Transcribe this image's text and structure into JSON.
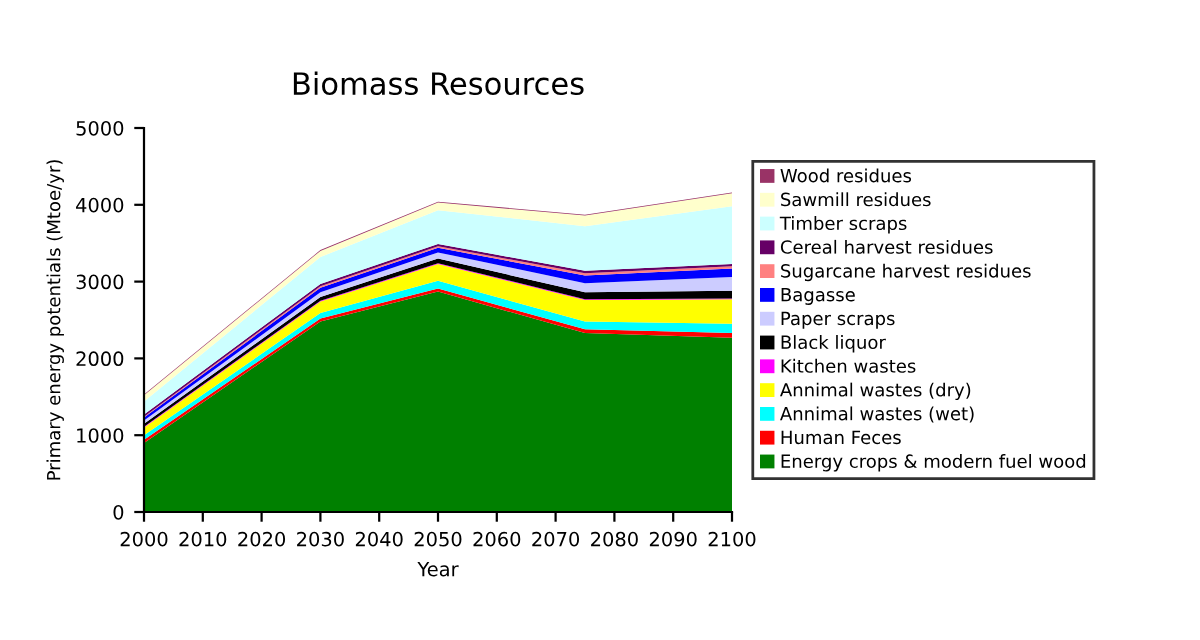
{
  "chart_data": {
    "type": "area",
    "stacked": true,
    "title": "Biomass Resources",
    "xlabel": "Year",
    "ylabel": "Primary energy potentials (Mtoe/yr)",
    "x": [
      2000,
      2030,
      2050,
      2075,
      2100
    ],
    "xlim": [
      2000,
      2100
    ],
    "xticks": [
      2000,
      2010,
      2020,
      2030,
      2040,
      2050,
      2060,
      2070,
      2080,
      2090,
      2100
    ],
    "ylim": [
      0,
      5000
    ],
    "yticks": [
      0,
      1000,
      2000,
      3000,
      4000,
      5000
    ],
    "grid": false,
    "legend": "right",
    "series": [
      {
        "name": "Energy crops & modern fuel wood",
        "color": "#008000",
        "values": [
          900,
          2480,
          2870,
          2330,
          2270
        ]
      },
      {
        "name": "Human Feces",
        "color": "#ff0000",
        "values": [
          40,
          40,
          40,
          50,
          60
        ]
      },
      {
        "name": "Annimal wastes (wet)",
        "color": "#00ffff",
        "values": [
          60,
          70,
          100,
          100,
          120
        ]
      },
      {
        "name": "Annimal wastes (dry)",
        "color": "#ffff00",
        "values": [
          100,
          150,
          220,
          280,
          320
        ]
      },
      {
        "name": "Kitchen wastes",
        "color": "#ff00ff",
        "values": [
          10,
          10,
          10,
          10,
          10
        ]
      },
      {
        "name": "Black liquor",
        "color": "#000000",
        "values": [
          40,
          50,
          60,
          90,
          100
        ]
      },
      {
        "name": "Paper scraps",
        "color": "#ccccff",
        "values": [
          40,
          60,
          80,
          120,
          180
        ]
      },
      {
        "name": "Bagasse",
        "color": "#0000ff",
        "values": [
          40,
          60,
          60,
          100,
          110
        ]
      },
      {
        "name": "Sugarcane harvest residues",
        "color": "#ff8080",
        "values": [
          10,
          20,
          20,
          30,
          30
        ]
      },
      {
        "name": "Cereal harvest residues",
        "color": "#660066",
        "values": [
          30,
          30,
          30,
          30,
          30
        ]
      },
      {
        "name": "Timber scraps",
        "color": "#ccffff",
        "values": [
          170,
          350,
          440,
          580,
          750
        ]
      },
      {
        "name": "Sawmill residues",
        "color": "#ffffcc",
        "values": [
          80,
          80,
          100,
          140,
          170
        ]
      },
      {
        "name": "Wood residues",
        "color": "#993366",
        "values": [
          10,
          10,
          10,
          10,
          10
        ]
      }
    ]
  }
}
